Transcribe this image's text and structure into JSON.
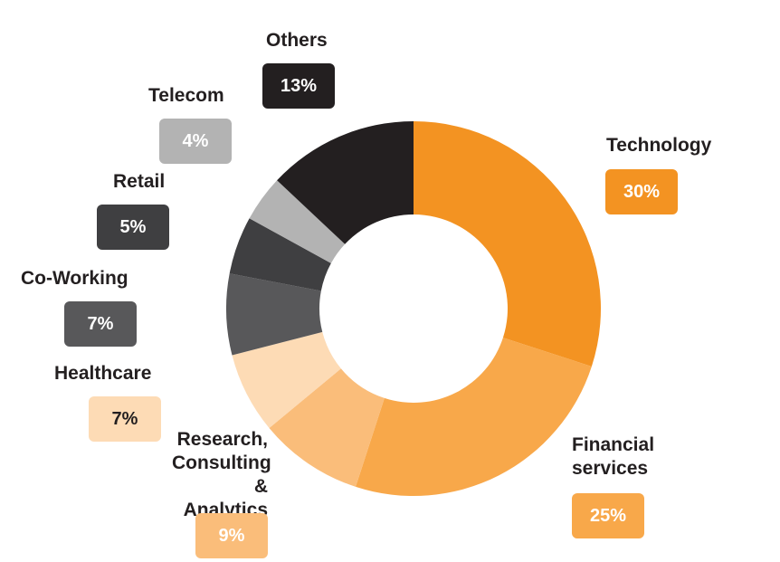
{
  "chart_data": {
    "type": "pie",
    "variant": "donut",
    "start": "top",
    "direction": "clockwise",
    "slices": [
      {
        "label": "Technology",
        "value": 30,
        "display": "30%",
        "color": "#F39322",
        "text_color": "#FFFFFF"
      },
      {
        "label": "Financial services",
        "value": 25,
        "display": "25%",
        "color": "#F8A84A",
        "text_color": "#FFFFFF"
      },
      {
        "label": "Research, Consulting & Analytics",
        "value": 9,
        "display": "9%",
        "color": "#FABD7A",
        "text_color": "#FFFFFF"
      },
      {
        "label": "Healthcare",
        "value": 7,
        "display": "7%",
        "color": "#FDDBB5",
        "text_color": "#231F20"
      },
      {
        "label": "Co-Working",
        "value": 7,
        "display": "7%",
        "color": "#58585A",
        "text_color": "#FFFFFF"
      },
      {
        "label": "Retail",
        "value": 5,
        "display": "5%",
        "color": "#3F3F41",
        "text_color": "#FFFFFF"
      },
      {
        "label": "Telecom",
        "value": 4,
        "display": "4%",
        "color": "#B3B3B3",
        "text_color": "#FFFFFF"
      },
      {
        "label": "Others",
        "value": 13,
        "display": "13%",
        "color": "#231F20",
        "text_color": "#FFFFFF"
      }
    ]
  }
}
